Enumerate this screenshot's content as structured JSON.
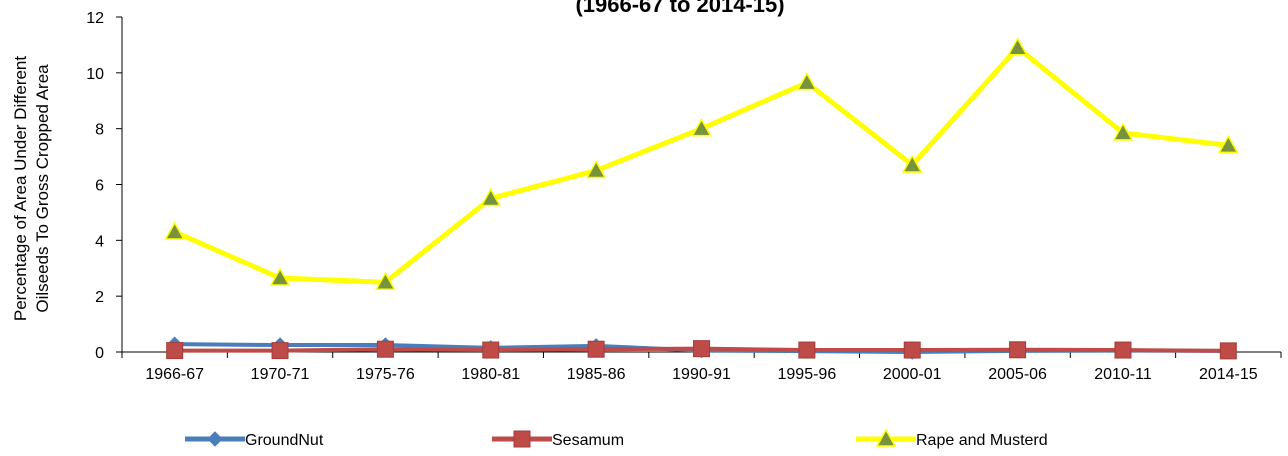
{
  "chart_data": {
    "type": "line",
    "title": "(1966-67 to 2014-15)",
    "xlabel": "",
    "ylabel_lines": [
      "Percentage of Area Under Different",
      "Oilseeds To Gross Cropped Area"
    ],
    "ylim": [
      0,
      12
    ],
    "yticks": [
      0,
      2,
      4,
      6,
      8,
      10,
      12
    ],
    "categories": [
      "1966-67",
      "1970-71",
      "1975-76",
      "1980-81",
      "1985-86",
      "1990-91",
      "1995-96",
      "2000-01",
      "2005-06",
      "2010-11",
      "2014-15"
    ],
    "legend_position": "bottom",
    "grid": false,
    "series": [
      {
        "name": "GroundNut",
        "color": "#4a7ebb",
        "marker": "diamond",
        "values": [
          0.28,
          0.25,
          0.25,
          0.15,
          0.22,
          0.05,
          0.03,
          0.0,
          0.04,
          0.05,
          0.04
        ]
      },
      {
        "name": "Sesamum",
        "color": "#be4b48",
        "marker": "square",
        "values": [
          0.05,
          0.05,
          0.1,
          0.07,
          0.1,
          0.12,
          0.07,
          0.07,
          0.08,
          0.07,
          0.04
        ]
      },
      {
        "name": "Rape and Musterd",
        "color": "#ffff00",
        "marker": "triangle",
        "marker_fill": "#77933c",
        "values": [
          4.3,
          2.65,
          2.5,
          5.5,
          6.5,
          8.0,
          9.65,
          6.7,
          10.9,
          7.85,
          7.4
        ]
      }
    ]
  }
}
